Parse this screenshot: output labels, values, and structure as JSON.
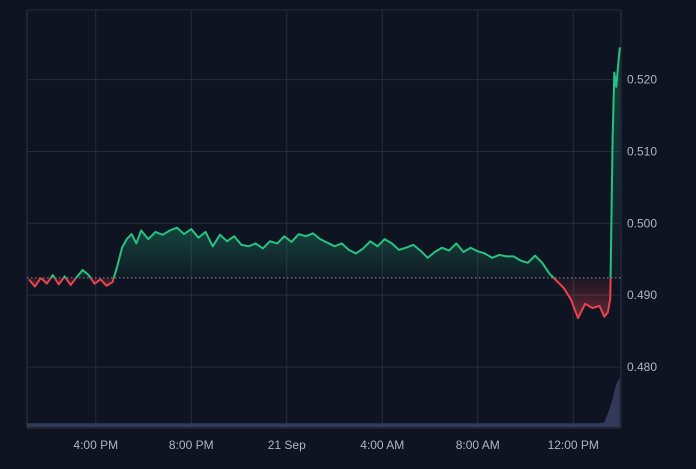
{
  "chart_data": {
    "type": "line",
    "baseline_value": 0.4924,
    "ylim": [
      0.4715,
      0.5297
    ],
    "y_ticks": [
      {
        "value": 0.48,
        "label": "0.480"
      },
      {
        "value": 0.49,
        "label": "0.490"
      },
      {
        "value": 0.5,
        "label": "0.500"
      },
      {
        "value": 0.51,
        "label": "0.510"
      },
      {
        "value": 0.52,
        "label": "0.520"
      }
    ],
    "x_ticks": [
      "4:00 PM",
      "8:00 PM",
      "21 Sep",
      "4:00 AM",
      "8:00 AM",
      "12:00 PM"
    ],
    "x_tick_hours": [
      16,
      20,
      24,
      28,
      32,
      36
    ],
    "x_range_hours": [
      13.12,
      38.0
    ],
    "colors": {
      "background": "#0f1422",
      "up": "#26c281",
      "down": "#e8434e",
      "grid": "#262c3b",
      "baseline": "#8a8f9c",
      "axis_text": "#b2b5be",
      "volume": "#3a3f63"
    },
    "series": [
      {
        "x_hours": [
          13.2,
          13.45,
          13.7,
          13.95,
          14.2,
          14.45,
          14.7,
          14.95,
          15.2,
          15.45,
          15.7,
          15.95,
          16.2,
          16.45,
          16.7,
          16.9,
          17.1,
          17.3,
          17.5,
          17.7,
          17.9,
          18.2,
          18.5,
          18.8,
          19.1,
          19.4,
          19.7,
          20.0,
          20.3,
          20.6,
          20.9,
          21.2,
          21.5,
          21.8,
          22.1,
          22.4,
          22.7,
          23.0,
          23.3,
          23.6,
          23.9,
          24.2,
          24.5,
          24.8,
          25.1,
          25.4,
          25.7,
          26.0,
          26.3,
          26.6,
          26.9,
          27.2,
          27.5,
          27.8,
          28.1,
          28.4,
          28.7,
          29.0,
          29.3,
          29.6,
          29.9,
          30.2,
          30.5,
          30.8,
          31.1,
          31.4,
          31.7,
          32.0,
          32.3,
          32.6,
          32.9,
          33.2,
          33.5,
          33.8,
          34.1,
          34.4,
          34.7,
          35.0,
          35.3,
          35.6,
          35.9,
          36.2,
          36.5,
          36.8,
          37.1,
          37.3,
          37.45,
          37.55,
          37.65,
          37.72,
          37.8,
          37.88,
          37.95
        ],
        "values": [
          0.4922,
          0.4912,
          0.4924,
          0.4916,
          0.4928,
          0.4915,
          0.4926,
          0.4914,
          0.4925,
          0.4935,
          0.4928,
          0.4916,
          0.4922,
          0.4913,
          0.4918,
          0.494,
          0.4966,
          0.4978,
          0.4985,
          0.4972,
          0.499,
          0.4978,
          0.4988,
          0.4984,
          0.499,
          0.4994,
          0.4985,
          0.4992,
          0.498,
          0.4988,
          0.4968,
          0.4984,
          0.4975,
          0.4982,
          0.497,
          0.4968,
          0.4972,
          0.4965,
          0.4975,
          0.4972,
          0.4982,
          0.4974,
          0.4985,
          0.4982,
          0.4986,
          0.4978,
          0.4973,
          0.4968,
          0.4972,
          0.4963,
          0.4958,
          0.4965,
          0.4975,
          0.4968,
          0.4978,
          0.4972,
          0.4963,
          0.4966,
          0.497,
          0.4962,
          0.4952,
          0.496,
          0.4966,
          0.4962,
          0.4972,
          0.496,
          0.4966,
          0.4961,
          0.4958,
          0.4952,
          0.4956,
          0.4954,
          0.4954,
          0.4948,
          0.4945,
          0.4955,
          0.4945,
          0.493,
          0.492,
          0.491,
          0.4894,
          0.4868,
          0.4888,
          0.4882,
          0.4885,
          0.487,
          0.4876,
          0.4895,
          0.512,
          0.521,
          0.519,
          0.522,
          0.5245
        ]
      }
    ],
    "volume": {
      "x_hours": [
        13.12,
        35.8,
        36.5,
        37.0,
        37.3,
        37.5,
        37.65,
        37.8,
        37.95
      ],
      "values": [
        1,
        1,
        1,
        1,
        1.2,
        1.6,
        2.6,
        4.0,
        4.6
      ]
    }
  }
}
